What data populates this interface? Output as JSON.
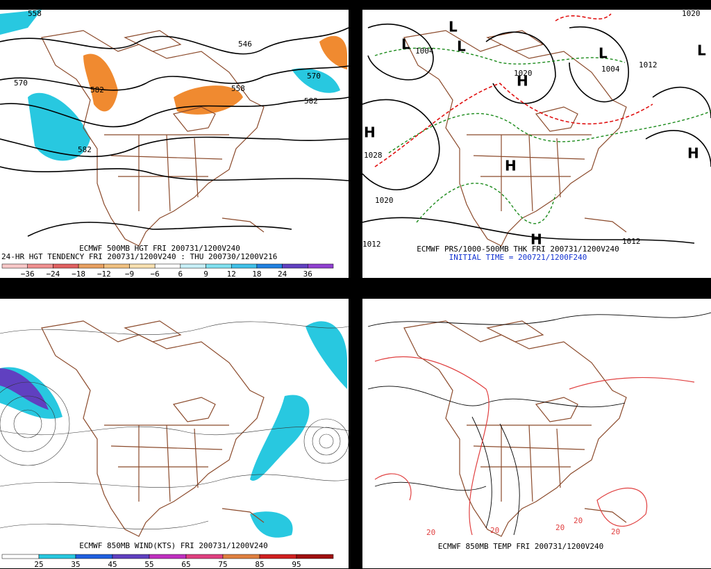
{
  "panels": [
    {
      "captions": [
        "ECMWF 500MB HGT FRI 200731/1200V240",
        "24-HR HGT TENDENCY FRI 200731/1200V240 : THU 200730/1200V216"
      ],
      "contour_labels": [
        "558",
        "570",
        "582",
        "546",
        "558",
        "570",
        "582",
        "582"
      ],
      "colorbar_labels": [
        "−36",
        "−24",
        "−18",
        "−12",
        "−9",
        "−6",
        "6",
        "9",
        "12",
        "18",
        "24",
        "36"
      ]
    },
    {
      "captions": [
        "ECMWF PRS/1000-500MB THK FRI 200731/1200V240",
        "INITIAL TIME = 200721/1200F240"
      ],
      "contour_labels": [
        "1004",
        "1020",
        "1004",
        "1012",
        "1020",
        "1028",
        "1020",
        "1012",
        "1012"
      ],
      "centers": [
        "L",
        "L",
        "L",
        "L",
        "L",
        "H",
        "H",
        "H",
        "H",
        "H"
      ]
    },
    {
      "captions": [
        "ECMWF 850MB WIND(KTS) FRI 200731/1200V240"
      ],
      "colorbar_labels": [
        "25",
        "35",
        "45",
        "55",
        "65",
        "75",
        "85",
        "95"
      ]
    },
    {
      "captions": [
        "ECMWF 850MB TEMP FRI 200731/1200V240"
      ],
      "contour_labels": [
        "20",
        "20",
        "20",
        "20",
        "20"
      ]
    }
  ]
}
